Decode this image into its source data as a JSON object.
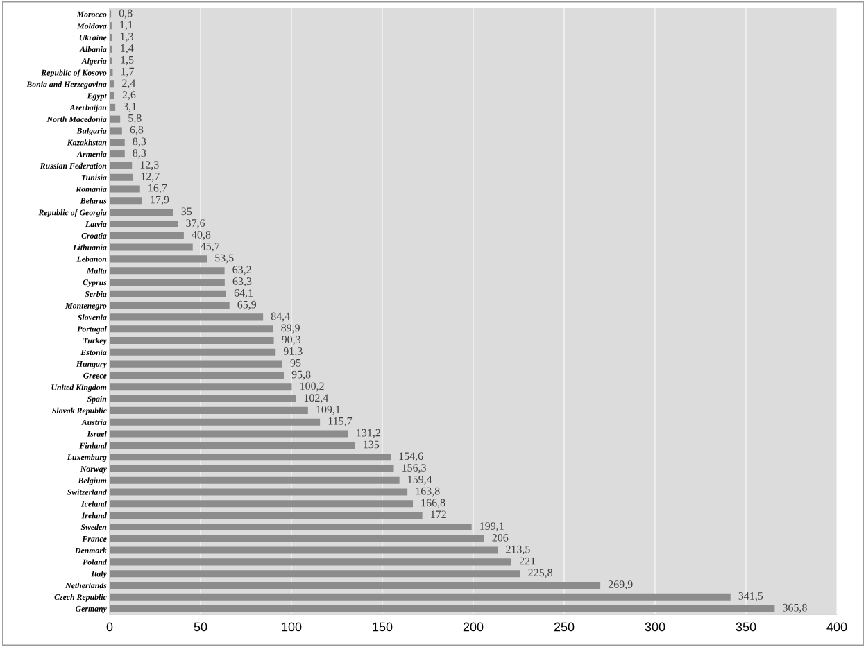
{
  "chart_data": {
    "type": "bar",
    "orientation": "horizontal",
    "categories": [
      "Morocco",
      "Moldova",
      "Ukraine",
      "Albania",
      "Algeria",
      "Republic of Kosovo",
      "Bonia and Herzegovina",
      "Egypt",
      "Azerbaijan",
      "North Macedonia",
      "Bulgaria",
      "Kazakhstan",
      "Armenia",
      "Russian Federation",
      "Tunisia",
      "Romania",
      "Belarus",
      "Republic of Georgia",
      "Latvia",
      "Croatia",
      "Lithuania",
      "Lebanon",
      "Malta",
      "Cyprus",
      "Serbia",
      "Montenegro",
      "Slovenia",
      "Portugal",
      "Turkey",
      "Estonia",
      "Hungary",
      "Greece",
      "United Kingdom",
      "Spain",
      "Slovak Republic",
      "Austria",
      "Israel",
      "Finland",
      "Luxemburg",
      "Norway",
      "Belgium",
      "Switzerland",
      "Iceland",
      "Ireland",
      "Sweden",
      "France",
      "Denmark",
      "Poland",
      "Italy",
      "Netherlands",
      "Czech Republic",
      "Germany"
    ],
    "values": [
      0.8,
      1.1,
      1.3,
      1.4,
      1.5,
      1.7,
      2.4,
      2.6,
      3.1,
      5.8,
      6.8,
      8.3,
      8.3,
      12.3,
      12.7,
      16.7,
      17.9,
      35,
      37.6,
      40.8,
      45.7,
      53.5,
      63.2,
      63.3,
      64.1,
      65.9,
      84.4,
      89.9,
      90.3,
      91.3,
      95,
      95.8,
      100.2,
      102.4,
      109.1,
      115.7,
      131.2,
      135,
      154.6,
      156.3,
      159.4,
      163.8,
      166.8,
      172,
      199.1,
      206,
      213.5,
      221,
      225.8,
      269.9,
      341.5,
      365.8
    ],
    "value_labels": [
      "0,8",
      "1,1",
      "1,3",
      "1,4",
      "1,5",
      "1,7",
      "2,4",
      "2,6",
      "3,1",
      "5,8",
      "6,8",
      "8,3",
      "8,3",
      "12,3",
      "12,7",
      "16,7",
      "17,9",
      "35",
      "37,6",
      "40,8",
      "45,7",
      "53,5",
      "63,2",
      "63,3",
      "64,1",
      "65,9",
      "84,4",
      "89,9",
      "90,3",
      "91,3",
      "95",
      "95,8",
      "100,2",
      "102,4",
      "109,1",
      "115,7",
      "131,2",
      "135",
      "154,6",
      "156,3",
      "159,4",
      "163,8",
      "166,8",
      "172",
      "199,1",
      "206",
      "213,5",
      "221",
      "225,8",
      "269,9",
      "341,5",
      "365,8"
    ],
    "color": "#8c8c8c",
    "xlim": [
      0,
      400
    ],
    "xticks": [
      0,
      50,
      100,
      150,
      200,
      250,
      300,
      350,
      400
    ],
    "grid": "x",
    "legend": false
  }
}
